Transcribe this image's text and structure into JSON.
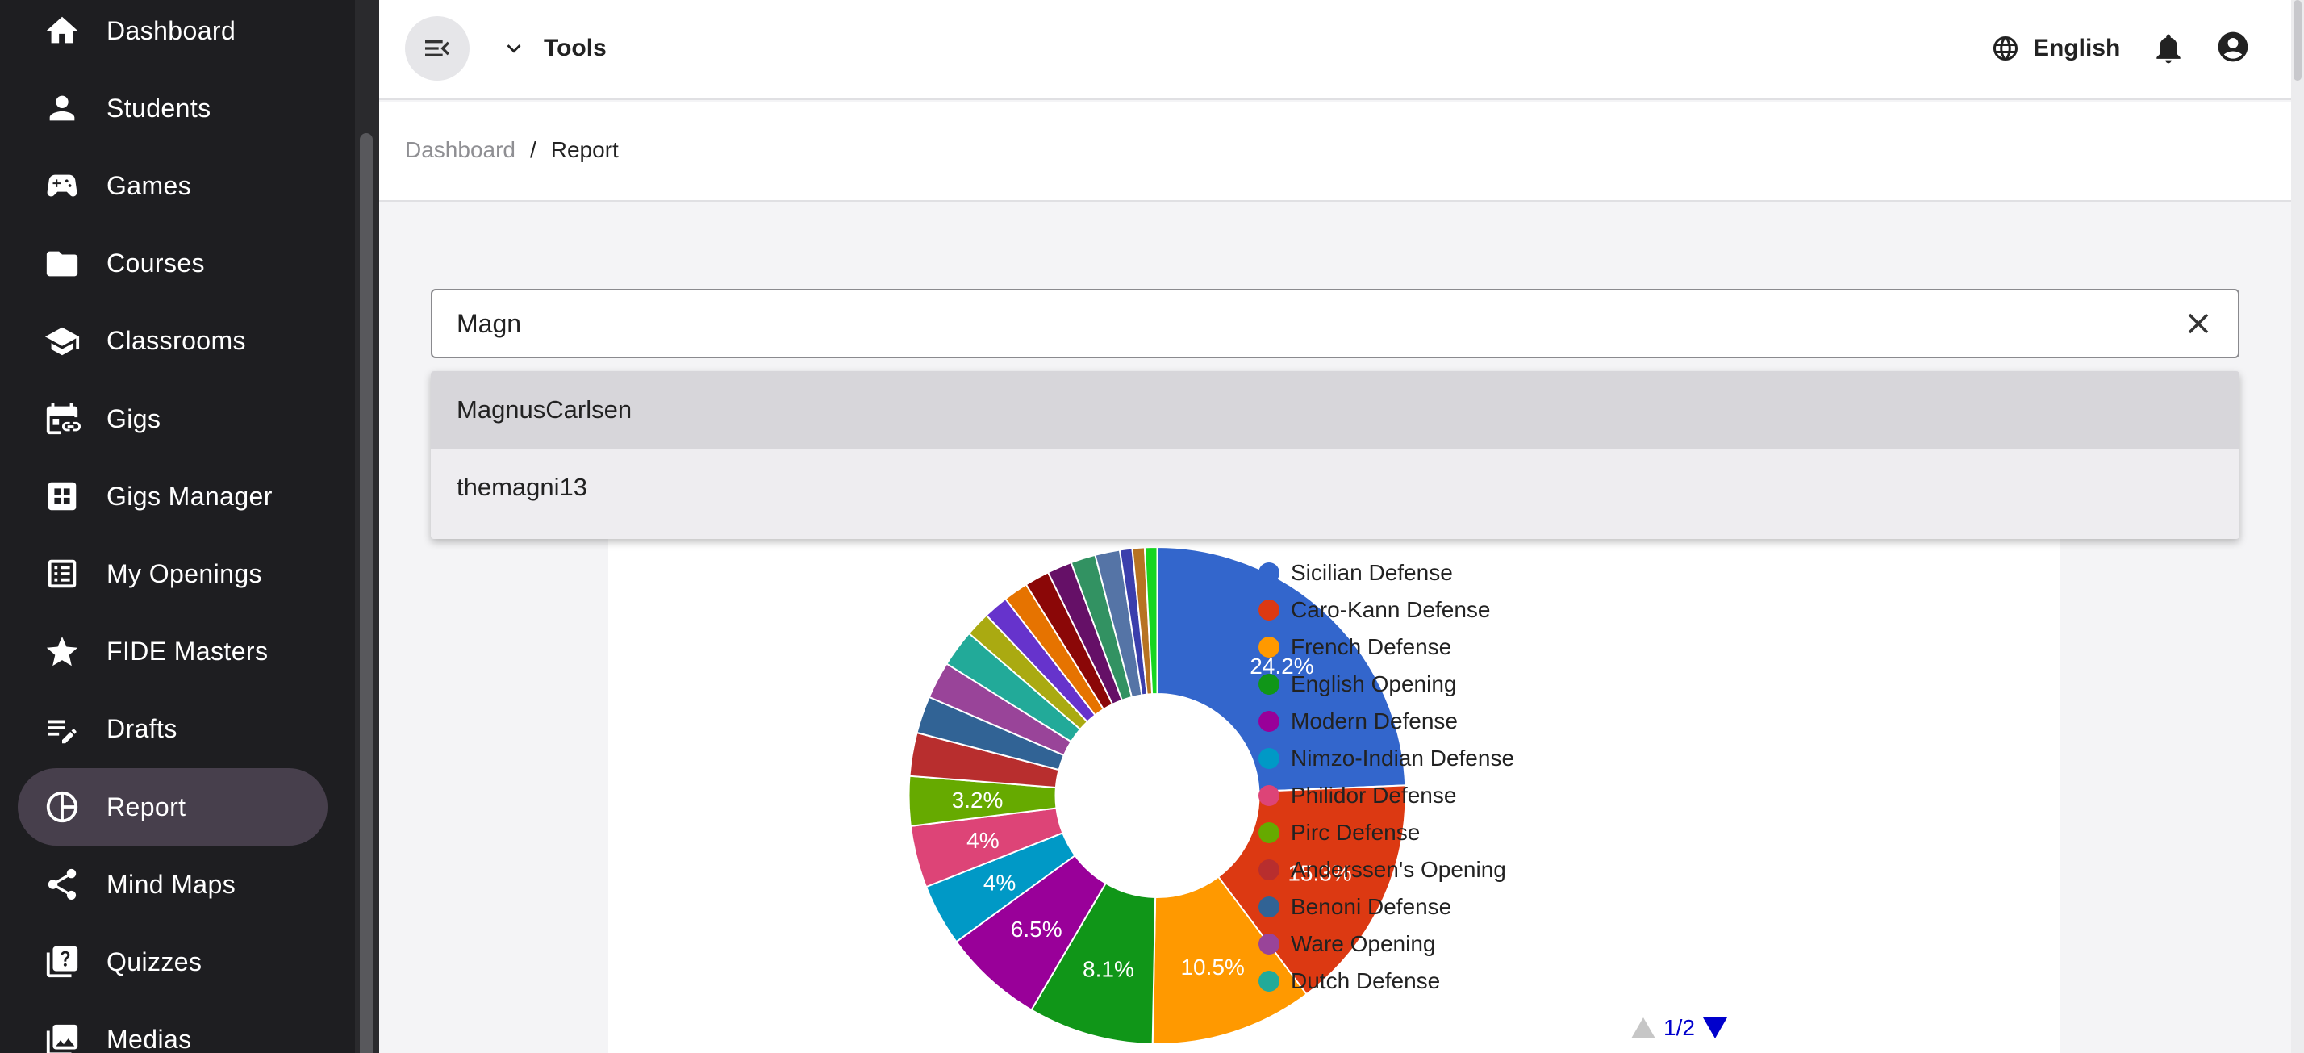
{
  "sidebar": {
    "items": [
      {
        "label": "Dashboard",
        "icon": "home-icon",
        "active": false
      },
      {
        "label": "Students",
        "icon": "person-icon",
        "active": false
      },
      {
        "label": "Games",
        "icon": "gamepad-icon",
        "active": false
      },
      {
        "label": "Courses",
        "icon": "folder-icon",
        "active": false
      },
      {
        "label": "Classrooms",
        "icon": "school-icon",
        "active": false
      },
      {
        "label": "Gigs",
        "icon": "event-link-icon",
        "active": false
      },
      {
        "label": "Gigs Manager",
        "icon": "grid-icon",
        "active": false
      },
      {
        "label": "My Openings",
        "icon": "ledger-icon",
        "active": false
      },
      {
        "label": "FIDE Masters",
        "icon": "star-icon",
        "active": false
      },
      {
        "label": "Drafts",
        "icon": "edit-note-icon",
        "active": false
      },
      {
        "label": "Report",
        "icon": "pie-chart-icon",
        "active": true
      },
      {
        "label": "Mind Maps",
        "icon": "share-icon",
        "active": false
      },
      {
        "label": "Quizzes",
        "icon": "quiz-icon",
        "active": false
      },
      {
        "label": "Medias",
        "icon": "photo-library-icon",
        "active": false
      }
    ],
    "active_color": "#473f4c"
  },
  "header": {
    "menu_icon": "menu-collapse-icon",
    "tools_label": "Tools",
    "language_label": "English"
  },
  "breadcrumb": {
    "parent": "Dashboard",
    "separator": "/",
    "current": "Report"
  },
  "search": {
    "value": "Magn",
    "options": [
      "MagnusCarlsen",
      "themagni13"
    ],
    "highlighted_index": 0
  },
  "chart_data": {
    "type": "pie",
    "donut": true,
    "legend_position": "right",
    "legend_page": "1/2",
    "slices": [
      {
        "label": "Sicilian Defense",
        "value": 24.2,
        "color": "#3366cc",
        "data_label": "24.2%"
      },
      {
        "label": "Caro-Kann Defense",
        "value": 15.3,
        "color": "#dc3912",
        "data_label": "15.3%"
      },
      {
        "label": "French Defense",
        "value": 10.5,
        "color": "#ff9900",
        "data_label": "10.5%"
      },
      {
        "label": "English Opening",
        "value": 8.1,
        "color": "#109618",
        "data_label": "8.1%"
      },
      {
        "label": "Modern Defense",
        "value": 6.5,
        "color": "#990099",
        "data_label": "6.5%"
      },
      {
        "label": "Nimzo-Indian Defense",
        "value": 4.0,
        "color": "#0099c6",
        "data_label": "4%"
      },
      {
        "label": "Philidor Defense",
        "value": 4.0,
        "color": "#dd4477",
        "data_label": "4%"
      },
      {
        "label": "Pirc Defense",
        "value": 3.2,
        "color": "#66aa00",
        "data_label": "3.2%"
      },
      {
        "label": "Anderssen's Opening",
        "value": 2.8,
        "color": "#b82e2e",
        "data_label": ""
      },
      {
        "label": "Benoni Defense",
        "value": 2.4,
        "color": "#316395",
        "data_label": ""
      },
      {
        "label": "Ware Opening",
        "value": 2.4,
        "color": "#994499",
        "data_label": ""
      },
      {
        "label": "Dutch Defense",
        "value": 2.4,
        "color": "#22aa99",
        "data_label": ""
      },
      {
        "label": "",
        "value": 1.6,
        "color": "#aaaa11",
        "data_label": ""
      },
      {
        "label": "",
        "value": 1.6,
        "color": "#6633cc",
        "data_label": ""
      },
      {
        "label": "",
        "value": 1.6,
        "color": "#e67300",
        "data_label": ""
      },
      {
        "label": "",
        "value": 1.6,
        "color": "#8b0707",
        "data_label": ""
      },
      {
        "label": "",
        "value": 1.6,
        "color": "#651067",
        "data_label": ""
      },
      {
        "label": "",
        "value": 1.6,
        "color": "#329262",
        "data_label": ""
      },
      {
        "label": "",
        "value": 1.6,
        "color": "#5574a6",
        "data_label": ""
      },
      {
        "label": "",
        "value": 0.8,
        "color": "#3b3eac",
        "data_label": ""
      },
      {
        "label": "",
        "value": 0.8,
        "color": "#b77322",
        "data_label": ""
      },
      {
        "label": "",
        "value": 0.8,
        "color": "#16d620",
        "data_label": ""
      }
    ]
  }
}
